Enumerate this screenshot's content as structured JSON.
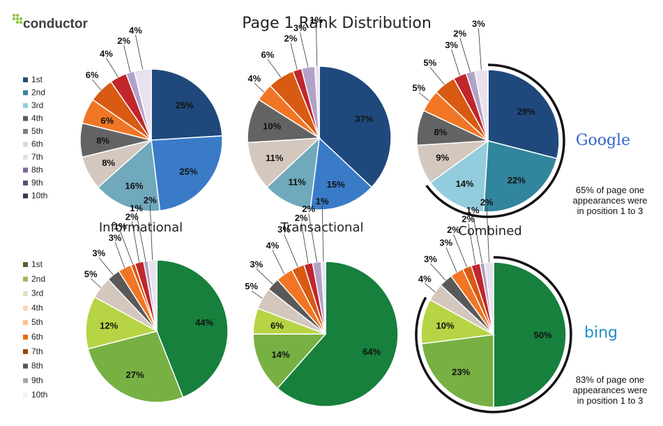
{
  "header": {
    "title": "Page 1 Rank Distribution",
    "logo_text": "conductor"
  },
  "brands": {
    "google": "Google",
    "bing": "bing"
  },
  "legends": {
    "google": {
      "items": [
        "1st",
        "2nd",
        "3rd",
        "4th",
        "5th",
        "6th",
        "7th",
        "8th",
        "9th",
        "10th"
      ],
      "colors": [
        "#1f4e79",
        "#31859c",
        "#93cddd",
        "#595959",
        "#7f7f7f",
        "#d9d9d9",
        "#e6e0ec",
        "#8064a2",
        "#5f497a",
        "#3f3151"
      ]
    },
    "bing": {
      "items": [
        "1st",
        "2nd",
        "3rd",
        "4th",
        "5th",
        "6th",
        "7th",
        "8th",
        "9th",
        "10th"
      ],
      "colors": [
        "#4f6228",
        "#9bbb59",
        "#d7e4bd",
        "#fcd5b5",
        "#fac090",
        "#e46c0a",
        "#984807",
        "#595959",
        "#a6a6a6",
        "#f2f2f2"
      ]
    }
  },
  "section_titles": {
    "informational": "Informational",
    "transactional": "Transactional",
    "combined": "Combined"
  },
  "annotations": {
    "google": [
      "65% of page one",
      "appearances were",
      "in position 1 to 3"
    ],
    "bing": [
      "83% of page one",
      "appearances were",
      "in position 1 to 3"
    ]
  },
  "chart_data": [
    {
      "type": "pie",
      "engine": "Google",
      "query_type": "Informational",
      "categories": [
        "1st",
        "2nd",
        "3rd",
        "4th",
        "5th",
        "6th",
        "7th",
        "8th",
        "9th",
        "10th"
      ],
      "values": [
        25,
        25,
        16,
        8,
        8,
        6,
        6,
        4,
        2,
        4
      ],
      "labels": [
        "25%",
        "25%",
        "16%",
        "8%",
        "8%",
        "6%",
        "6%",
        "4%",
        "2%",
        "4%"
      ],
      "colors": [
        "#1f497d",
        "#3a7bc8",
        "#70a8bc",
        "#d4c7bd",
        "#636363",
        "#f07625",
        "#d95a12",
        "#c0262c",
        "#b3a2c7",
        "#e8e2ef"
      ]
    },
    {
      "type": "pie",
      "engine": "Google",
      "query_type": "Transactional",
      "categories": [
        "1st",
        "2nd",
        "3rd",
        "4th",
        "5th",
        "6th",
        "7th",
        "8th",
        "9th",
        "10th"
      ],
      "values": [
        37,
        15,
        11,
        11,
        10,
        4,
        6,
        2,
        3,
        1
      ],
      "labels": [
        "37%",
        "15%",
        "11%",
        "11%",
        "10%",
        "4%",
        "6%",
        "2%",
        "3%",
        "1%"
      ],
      "colors": [
        "#1f497d",
        "#3a7bc8",
        "#70a8bc",
        "#d4c7bd",
        "#636363",
        "#f07625",
        "#d95a12",
        "#c0262c",
        "#b3a2c7",
        "#e8e2ef"
      ]
    },
    {
      "type": "pie",
      "engine": "Google",
      "query_type": "Combined",
      "categories": [
        "1st",
        "2nd",
        "3rd",
        "4th",
        "5th",
        "6th",
        "7th",
        "8th",
        "9th",
        "10th"
      ],
      "values": [
        29,
        22,
        14,
        9,
        8,
        5,
        5,
        3,
        2,
        3
      ],
      "labels": [
        "29%",
        "22%",
        "14%",
        "9%",
        "8%",
        "5%",
        "5%",
        "3%",
        "2%",
        "3%"
      ],
      "colors": [
        "#1f497d",
        "#31859c",
        "#93cddd",
        "#d4c7bd",
        "#636363",
        "#f07625",
        "#d95a12",
        "#c0262c",
        "#b3a2c7",
        "#e8e2ef"
      ]
    },
    {
      "type": "pie",
      "engine": "Bing",
      "query_type": "Informational",
      "categories": [
        "1st",
        "2nd",
        "3rd",
        "4th",
        "5th",
        "6th",
        "7th",
        "8th",
        "9th",
        "10th"
      ],
      "values": [
        44,
        27,
        12,
        5,
        3,
        3,
        1,
        2,
        1,
        2
      ],
      "labels": [
        "44%",
        "27%",
        "12%",
        "5%",
        "3%",
        "3%",
        "1%",
        "2%",
        "1%",
        "2%"
      ],
      "colors": [
        "#17803d",
        "#77b043",
        "#b7d444",
        "#d4c7bd",
        "#595959",
        "#f07625",
        "#d95a12",
        "#c0262c",
        "#b3a2c7",
        "#e8e2ef"
      ]
    },
    {
      "type": "pie",
      "engine": "Bing",
      "query_type": "Transactional",
      "categories": [
        "1st",
        "2nd",
        "3rd",
        "4th",
        "5th",
        "6th",
        "7th",
        "8th",
        "9th",
        "10th"
      ],
      "values": [
        64,
        14,
        6,
        5,
        3,
        4,
        3,
        2,
        2,
        1
      ],
      "labels": [
        "64%",
        "14%",
        "6%",
        "5%",
        "3%",
        "4%",
        "3%",
        "2%",
        "2%",
        "1%"
      ],
      "colors": [
        "#17803d",
        "#77b043",
        "#b7d444",
        "#d4c7bd",
        "#595959",
        "#f07625",
        "#d95a12",
        "#c0262c",
        "#b3a2c7",
        "#e8e2ef"
      ]
    },
    {
      "type": "pie",
      "engine": "Bing",
      "query_type": "Combined",
      "categories": [
        "1st",
        "2nd",
        "3rd",
        "4th",
        "5th",
        "6th",
        "7th",
        "8th",
        "9th",
        "10th"
      ],
      "values": [
        50,
        23,
        10,
        4,
        3,
        3,
        2,
        2,
        1,
        2
      ],
      "labels": [
        "50%",
        "23%",
        "10%",
        "4%",
        "3%",
        "3%",
        "2%",
        "2%",
        "1%",
        "2%"
      ],
      "colors": [
        "#17803d",
        "#77b043",
        "#b7d444",
        "#d4c7bd",
        "#595959",
        "#f07625",
        "#d95a12",
        "#c0262c",
        "#b3a2c7",
        "#e8e2ef"
      ]
    }
  ]
}
